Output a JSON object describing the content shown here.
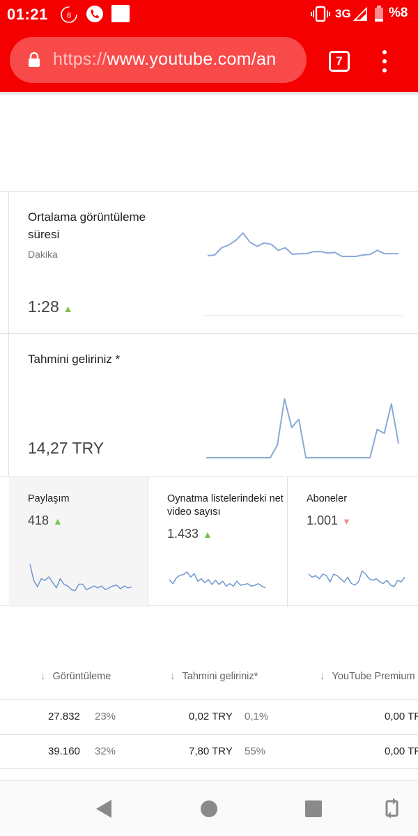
{
  "status_bar": {
    "time": "01:21",
    "notif_badge": "8",
    "network": "3G",
    "battery": "%8"
  },
  "browser": {
    "url_scheme": "https://",
    "url_host": "www.youtube.com/an",
    "tab_count": "7"
  },
  "cards": {
    "avg_watch": {
      "title": "Ortalama görüntüleme süresi",
      "subtitle": "Dakika",
      "value": "1:28",
      "trend": "▲",
      "chart_data": {
        "type": "line",
        "x": [
          1,
          2,
          3,
          4,
          5,
          6,
          7,
          8,
          9,
          10,
          11,
          12,
          13,
          14,
          15,
          16,
          17,
          18,
          19,
          20,
          21,
          22,
          23,
          24,
          25,
          26,
          27,
          28
        ],
        "values": [
          1.1,
          1.11,
          1.22,
          1.26,
          1.33,
          1.44,
          1.3,
          1.24,
          1.29,
          1.27,
          1.18,
          1.22,
          1.12,
          1.13,
          1.13,
          1.16,
          1.16,
          1.14,
          1.15,
          1.09,
          1.09,
          1.09,
          1.11,
          1.12,
          1.18,
          1.13,
          1.13,
          1.13
        ],
        "ylim": [
          0.6,
          1.6
        ]
      }
    },
    "revenue": {
      "title": "Tahmini geliriniz *",
      "value": "14,27 TRY",
      "chart_data": {
        "type": "line",
        "x": [
          1,
          2,
          3,
          4,
          5,
          6,
          7,
          8,
          9,
          10,
          11,
          12,
          13,
          14,
          15,
          16,
          17,
          18,
          19,
          20,
          21,
          22,
          23,
          24,
          25,
          26,
          27,
          28
        ],
        "values": [
          0,
          0,
          0,
          0,
          0,
          0,
          0,
          0,
          0,
          0,
          0.2,
          0.92,
          0.47,
          0.6,
          0,
          0,
          0,
          0,
          0,
          0,
          0,
          0,
          0,
          0,
          0.44,
          0.38,
          0.84,
          0.22
        ],
        "ylim": [
          0,
          1
        ]
      }
    }
  },
  "metrics": [
    {
      "title": "Paylaşım",
      "value": "418",
      "trend": "up",
      "chart_data": {
        "type": "line",
        "values": [
          30,
          12,
          5,
          14,
          12,
          16,
          10,
          4,
          14,
          8,
          6,
          2,
          1,
          8,
          8,
          2,
          4,
          6,
          4,
          6,
          2,
          4,
          6,
          7,
          3,
          6,
          4,
          5
        ],
        "ylim": [
          0,
          32
        ]
      }
    },
    {
      "title": "Oynatma listelerindeki net video sayısı",
      "value": "1.433",
      "trend": "up",
      "chart_data": {
        "type": "line",
        "values": [
          46,
          41,
          48,
          51,
          52,
          55,
          49,
          53,
          44,
          47,
          42,
          46,
          40,
          45,
          40,
          44,
          38,
          41,
          38,
          44,
          39,
          40,
          41,
          38,
          39,
          41,
          38,
          36
        ],
        "ylim": [
          30,
          60
        ]
      }
    },
    {
      "title": "Aboneler",
      "value": "1.001",
      "trend": "down",
      "chart_data": {
        "type": "line",
        "values": [
          8,
          6,
          7,
          5,
          8,
          7,
          3,
          8,
          7,
          5,
          3,
          6,
          2,
          1,
          3,
          10,
          8,
          5,
          4,
          5,
          3,
          2,
          4,
          1,
          0,
          4,
          3,
          6
        ],
        "ylim": [
          -4,
          12
        ]
      }
    }
  ],
  "table": {
    "headers": [
      "Görüntüleme",
      "Tahmini geliriniz*",
      "YouTube Premium"
    ],
    "rows": [
      {
        "views": "27.832",
        "views_pct": "23%",
        "revenue": "0,02 TRY",
        "revenue_pct": "0,1%",
        "premium": "0,00 TR"
      },
      {
        "views": "39.160",
        "views_pct": "32%",
        "revenue": "7,80 TRY",
        "revenue_pct": "55%",
        "premium": "0,00 TR"
      }
    ]
  },
  "icons": {
    "sparkline_color": "#8aa9d6",
    "sparkline_color_small": "#6f96cf"
  }
}
